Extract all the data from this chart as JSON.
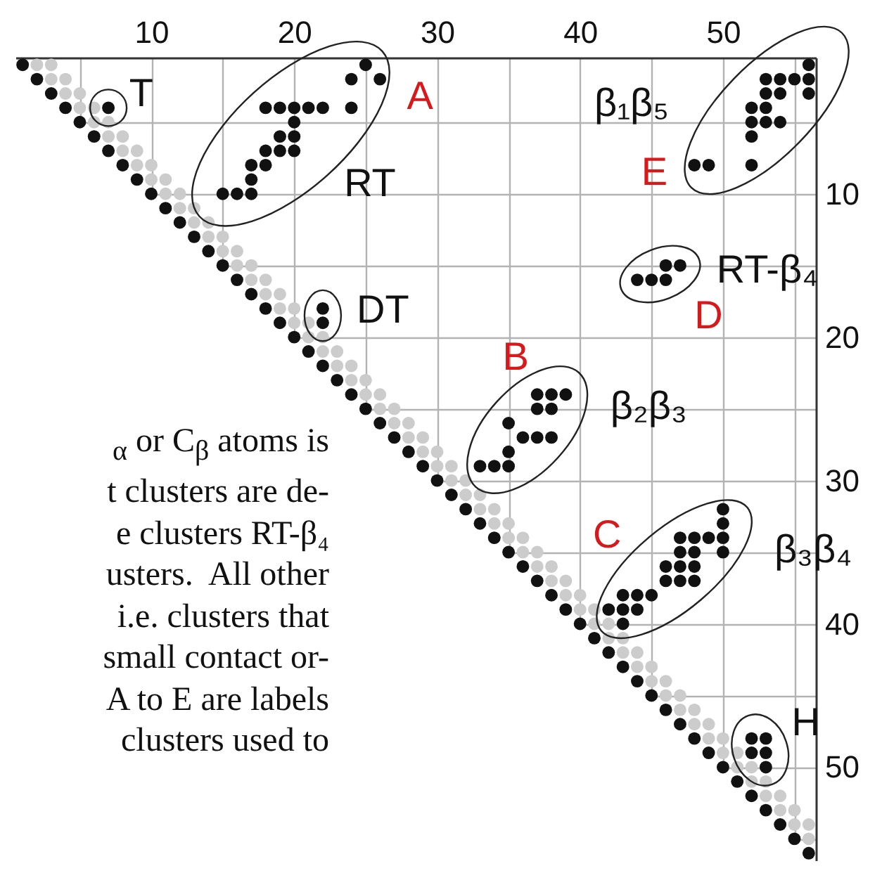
{
  "chart_data": {
    "type": "scatter",
    "xlim": [
      0.5,
      56.5
    ],
    "ylim": [
      56.5,
      0.5
    ],
    "xticks": [
      {
        "value": 5,
        "label": null
      },
      10,
      {
        "value": 15,
        "label": null
      },
      20,
      {
        "value": 25,
        "label": null
      },
      30,
      {
        "value": 35,
        "label": null
      },
      40,
      {
        "value": 45,
        "label": null
      },
      50,
      {
        "value": 55,
        "label": null
      }
    ],
    "yticks": [
      {
        "value": 5,
        "label": null
      },
      10,
      {
        "value": 15,
        "label": null
      },
      20,
      {
        "value": 25,
        "label": null
      },
      30,
      {
        "value": 35,
        "label": null
      },
      40,
      {
        "value": 45,
        "label": null
      },
      50,
      {
        "value": 55,
        "label": null
      }
    ],
    "grid": true,
    "marker": "circle",
    "series": [
      {
        "color": "#111111",
        "x": [
          1,
          2,
          3,
          4,
          5,
          6,
          7,
          8,
          9,
          10,
          11,
          12,
          13,
          14,
          15,
          16,
          17,
          18,
          19,
          20,
          21,
          22,
          23,
          24,
          25,
          26,
          27,
          28,
          29,
          30,
          31,
          32,
          33,
          34,
          35,
          36,
          37,
          38,
          39,
          40,
          41,
          42,
          43,
          44,
          45,
          46,
          47,
          48,
          49,
          50,
          51,
          52,
          53,
          54,
          55,
          56
        ],
        "values": [
          1,
          2,
          3,
          4,
          5,
          6,
          7,
          8,
          9,
          10,
          11,
          12,
          13,
          14,
          15,
          16,
          17,
          18,
          19,
          20,
          21,
          22,
          23,
          24,
          25,
          26,
          27,
          28,
          29,
          30,
          31,
          32,
          33,
          34,
          35,
          36,
          37,
          38,
          39,
          40,
          41,
          42,
          43,
          44,
          45,
          46,
          47,
          48,
          49,
          50,
          51,
          52,
          53,
          54,
          55,
          56
        ]
      },
      {
        "color": "#cccccc",
        "x": [
          2,
          3,
          3,
          4,
          4,
          5,
          5,
          6,
          6,
          7,
          7,
          8,
          8,
          9,
          9,
          10,
          10,
          11,
          11,
          12,
          12,
          13,
          13,
          14,
          14,
          15,
          15,
          16,
          16,
          17,
          17,
          18,
          18,
          19,
          19,
          20,
          20,
          21,
          21,
          22,
          22,
          23,
          23,
          24,
          24,
          25,
          25,
          26,
          26,
          27,
          27,
          28,
          28,
          29,
          29,
          30,
          30,
          31,
          31,
          32,
          32,
          33,
          33,
          34,
          34,
          35,
          35,
          36,
          36,
          37,
          37,
          38,
          38,
          39,
          39,
          40,
          40,
          41,
          41,
          42,
          42,
          43,
          43,
          44,
          44,
          45,
          45,
          46,
          46,
          47,
          47,
          48,
          48,
          49,
          49,
          50,
          50,
          51,
          51,
          52,
          52,
          53,
          53,
          54,
          54,
          55,
          55,
          56,
          56
        ],
        "values": [
          1,
          1,
          2,
          2,
          3,
          3,
          4,
          4,
          5,
          5,
          6,
          6,
          7,
          7,
          8,
          8,
          9,
          9,
          10,
          10,
          11,
          11,
          12,
          12,
          13,
          13,
          14,
          14,
          15,
          15,
          16,
          16,
          17,
          17,
          18,
          18,
          19,
          19,
          20,
          20,
          21,
          21,
          22,
          22,
          23,
          23,
          24,
          24,
          25,
          25,
          26,
          26,
          27,
          27,
          28,
          28,
          29,
          29,
          30,
          30,
          31,
          31,
          32,
          32,
          33,
          33,
          34,
          34,
          35,
          35,
          36,
          36,
          37,
          37,
          38,
          38,
          39,
          39,
          40,
          40,
          41,
          41,
          42,
          42,
          43,
          43,
          44,
          44,
          45,
          45,
          46,
          46,
          47,
          47,
          48,
          48,
          49,
          49,
          50,
          50,
          51,
          51,
          52,
          52,
          53,
          53,
          54,
          54,
          55
        ]
      },
      {
        "color": "#111111",
        "x": [
          7
        ],
        "values": [
          4
        ]
      },
      {
        "color": "#111111",
        "x": [
          25,
          24,
          26,
          24,
          18,
          19,
          20,
          21,
          22,
          20,
          19,
          20,
          18,
          19,
          20,
          17,
          18,
          17,
          15,
          16,
          17
        ],
        "values": [
          1,
          2,
          2,
          4,
          4,
          4,
          4,
          4,
          4,
          5,
          6,
          6,
          7,
          7,
          7,
          8,
          8,
          9,
          10,
          10,
          10
        ]
      },
      {
        "color": "#111111",
        "x": [
          22,
          22
        ],
        "values": [
          18,
          19
        ]
      },
      {
        "color": "#111111",
        "x": [
          56,
          53,
          54,
          55,
          56,
          53,
          54,
          56,
          52,
          53,
          52,
          53,
          54,
          52,
          48,
          49,
          52
        ],
        "values": [
          1,
          2,
          2,
          2,
          2,
          3,
          3,
          3,
          4,
          4,
          5,
          5,
          5,
          6,
          8,
          8,
          8
        ]
      },
      {
        "color": "#111111",
        "x": [
          46,
          47,
          44,
          45,
          46
        ],
        "values": [
          15,
          15,
          16,
          16,
          16
        ]
      },
      {
        "color": "#111111",
        "x": [
          37,
          38,
          39,
          37,
          38,
          35,
          36,
          37,
          38,
          35,
          33,
          34,
          35
        ],
        "values": [
          24,
          24,
          24,
          25,
          25,
          26,
          27,
          27,
          27,
          28,
          29,
          29,
          29
        ]
      },
      {
        "color": "#111111",
        "x": [
          50,
          50,
          47,
          48,
          49,
          50,
          47,
          48,
          50,
          46,
          47,
          48,
          46,
          47,
          48,
          43,
          44,
          45,
          42,
          43,
          44,
          43
        ],
        "values": [
          32,
          33,
          34,
          34,
          34,
          34,
          35,
          35,
          35,
          36,
          36,
          36,
          37,
          37,
          37,
          38,
          38,
          38,
          39,
          39,
          39,
          40
        ]
      },
      {
        "color": "#111111",
        "x": [
          52,
          53,
          52,
          53,
          53
        ],
        "values": [
          48,
          48,
          49,
          49,
          50
        ]
      }
    ],
    "annotations": [
      "T",
      "A",
      "RT",
      "β₁β₅",
      "E",
      "RT-β₄",
      "D",
      "DT",
      "B",
      "β₂β₃",
      "C",
      "β₃β₄",
      "H",
      "$_{α}$ or C$_{β}$ atoms is",
      "t clusters are de-",
      "e clusters RT-β₄",
      "usters.  All other",
      "i.e. clusters that",
      "small contact or-",
      "A to E are labels",
      "clusters used to"
    ]
  }
}
